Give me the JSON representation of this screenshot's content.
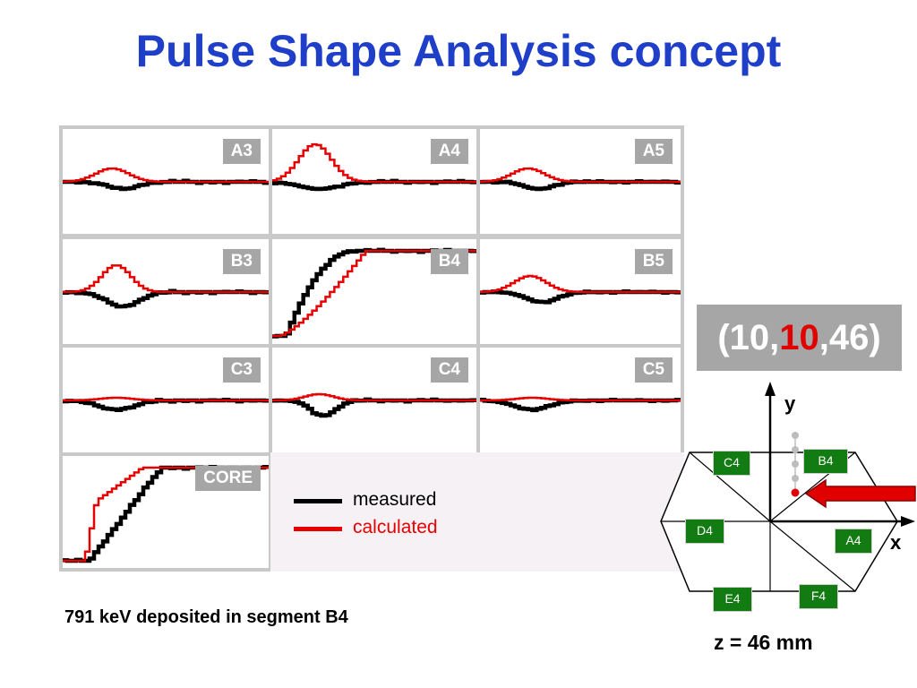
{
  "title": "Pulse Shape Analysis concept",
  "chart_data": {
    "type": "line",
    "panels": [
      {
        "label": "A3",
        "type": "small-neg-pos"
      },
      {
        "label": "A4",
        "type": "big-pos"
      },
      {
        "label": "A5",
        "type": "small-neg-pos"
      },
      {
        "label": "B3",
        "type": "big-neg-pos"
      },
      {
        "label": "B4",
        "type": "step"
      },
      {
        "label": "B5",
        "type": "med-neg-pos"
      },
      {
        "label": "C3",
        "type": "small-neg"
      },
      {
        "label": "C4",
        "type": "med-neg"
      },
      {
        "label": "C5",
        "type": "small-neg"
      },
      {
        "label": "CORE",
        "type": "step-core"
      }
    ],
    "series": [
      {
        "name": "measured",
        "color": "#000000"
      },
      {
        "name": "calculated",
        "color": "#e80000"
      }
    ]
  },
  "legend": {
    "measured": "measured",
    "calculated": "calculated",
    "measured_color": "#000000",
    "calculated_color": "#e80000"
  },
  "note": "791 keV deposited in segment B4",
  "position": {
    "open": "(",
    "x": "10,",
    "y": "10",
    "z": ",46)"
  },
  "detector": {
    "axis_y": "y",
    "axis_x": "x",
    "segments": [
      "C4",
      "B4",
      "D4",
      "A4",
      "E4",
      "F4"
    ],
    "z_label": "z = 46 mm"
  }
}
